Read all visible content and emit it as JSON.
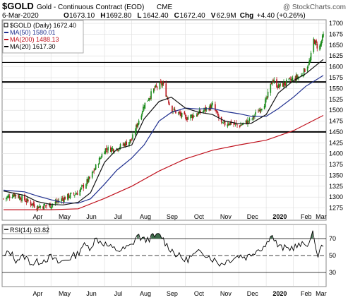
{
  "header": {
    "symbol": "$GOLD",
    "description": "Gold - Continuous Contract (EOD)",
    "exchange": "CME",
    "watermark": "@ StockCharts.com",
    "date": "6-Mar-2020",
    "ohlc": [
      {
        "label": "O",
        "value": "1673.10"
      },
      {
        "label": "H",
        "value": "1692.80"
      },
      {
        "label": "L",
        "value": "1642.40"
      },
      {
        "label": "C",
        "value": "1672.40"
      },
      {
        "label": "V",
        "value": "62.9M"
      }
    ],
    "change_label": "Chg",
    "change_value": "+4.40 (+0.26%)"
  },
  "legend": [
    {
      "text": "$GOLD (Daily) 1672.40",
      "color": "#000000",
      "kind": "candles"
    },
    {
      "text": "MA(50) 1580.01",
      "color": "#1f2f8f",
      "kind": "line"
    },
    {
      "text": "MA(200) 1488.13",
      "color": "#c0121e",
      "kind": "line"
    },
    {
      "text": "MA(20) 1617.30",
      "color": "#000000",
      "kind": "line"
    }
  ],
  "rsi_legend": {
    "text": "RSI(14) 63.82"
  },
  "colors": {
    "up": "#1a8a1a",
    "down": "#b8121b",
    "ma50": "#1f2f8f",
    "ma200": "#c0121e",
    "ma20": "#111111",
    "rsi_fill": "#3d6b4a"
  },
  "chart_data": [
    {
      "type": "candlestick",
      "title": "$GOLD Gold - Continuous Contract (EOD) CME",
      "period": {
        "start": "2019-03-08",
        "end": "2020-03-06"
      },
      "x_tick_labels": [
        "Apr",
        "May",
        "Jun",
        "Jul",
        "Aug",
        "Sep",
        "Oct",
        "Nov",
        "Dec",
        "2020",
        "Feb",
        "Mar"
      ],
      "ylim": [
        1250,
        1705
      ],
      "y_ticks": [
        1275,
        1300,
        1325,
        1350,
        1375,
        1400,
        1425,
        1450,
        1475,
        1500,
        1525,
        1550,
        1575,
        1600,
        1625,
        1650,
        1675,
        1700
      ],
      "horizontal_lines": [
        1450,
        1565,
        1610
      ],
      "grid": true,
      "series": [
        {
          "name": "$GOLD (Daily)",
          "type": "close",
          "x": [
            "2019-03-08",
            "2019-03-20",
            "2019-04-01",
            "2019-04-15",
            "2019-05-01",
            "2019-05-15",
            "2019-06-01",
            "2019-06-15",
            "2019-07-01",
            "2019-07-15",
            "2019-08-01",
            "2019-08-15",
            "2019-08-27",
            "2019-09-05",
            "2019-09-15",
            "2019-10-01",
            "2019-10-15",
            "2019-11-01",
            "2019-11-12",
            "2019-11-20",
            "2019-12-01",
            "2019-12-15",
            "2020-01-01",
            "2020-01-08",
            "2020-01-15",
            "2020-02-01",
            "2020-02-10",
            "2020-02-20",
            "2020-02-24",
            "2020-03-01",
            "2020-03-06"
          ],
          "y": [
            1296,
            1307,
            1294,
            1278,
            1282,
            1297,
            1311,
            1345,
            1410,
            1412,
            1432,
            1512,
            1550,
            1561,
            1503,
            1482,
            1492,
            1511,
            1466,
            1472,
            1464,
            1478,
            1522,
            1570,
            1554,
            1572,
            1580,
            1614,
            1662,
            1640,
            1672
          ]
        },
        {
          "name": "MA(50)",
          "x": [
            "2019-03-08",
            "2019-04-01",
            "2019-04-15",
            "2019-05-01",
            "2019-05-15",
            "2019-06-01",
            "2019-06-15",
            "2019-07-01",
            "2019-07-15",
            "2019-08-01",
            "2019-08-15",
            "2019-09-01",
            "2019-09-15",
            "2019-10-01",
            "2019-10-15",
            "2019-11-01",
            "2019-11-15",
            "2019-12-01",
            "2019-12-15",
            "2020-01-01",
            "2020-01-15",
            "2020-02-01",
            "2020-02-15",
            "2020-03-06"
          ],
          "y": [
            1316,
            1312,
            1303,
            1294,
            1287,
            1286,
            1296,
            1330,
            1362,
            1390,
            1420,
            1475,
            1495,
            1505,
            1503,
            1504,
            1497,
            1492,
            1486,
            1486,
            1504,
            1530,
            1555,
            1580
          ]
        },
        {
          "name": "MA(200)",
          "x": [
            "2019-03-08",
            "2019-05-01",
            "2019-06-01",
            "2019-07-01",
            "2019-08-01",
            "2019-09-01",
            "2019-10-01",
            "2019-11-01",
            "2019-12-01",
            "2020-01-01",
            "2020-02-01",
            "2020-03-06"
          ],
          "y": [
            1271,
            1271,
            1273,
            1297,
            1325,
            1360,
            1388,
            1408,
            1420,
            1431,
            1453,
            1488
          ]
        },
        {
          "name": "MA(20)",
          "x": [
            "2019-03-08",
            "2019-04-01",
            "2019-04-15",
            "2019-05-01",
            "2019-05-15",
            "2019-06-01",
            "2019-06-15",
            "2019-07-01",
            "2019-07-15",
            "2019-08-01",
            "2019-08-15",
            "2019-09-01",
            "2019-09-15",
            "2019-10-01",
            "2019-10-15",
            "2019-11-01",
            "2019-11-15",
            "2019-12-01",
            "2019-12-15",
            "2020-01-01",
            "2020-01-15",
            "2020-02-01",
            "2020-02-15",
            "2020-03-06"
          ],
          "y": [
            1314,
            1304,
            1290,
            1283,
            1282,
            1288,
            1310,
            1380,
            1410,
            1420,
            1480,
            1520,
            1530,
            1505,
            1496,
            1490,
            1475,
            1469,
            1470,
            1490,
            1540,
            1568,
            1584,
            1617
          ]
        }
      ]
    },
    {
      "type": "line",
      "title": "RSI(14) 63.82",
      "x_tick_labels": [
        "Apr",
        "May",
        "Jun",
        "Jul",
        "Aug",
        "Sep",
        "Oct",
        "Nov",
        "Dec",
        "2020",
        "Feb",
        "Mar"
      ],
      "ylim": [
        15,
        85
      ],
      "y_ticks": [
        30,
        50,
        70
      ],
      "reference_lines": [
        30,
        50,
        70
      ],
      "series": [
        {
          "name": "RSI(14)",
          "x": [
            "2019-03-08",
            "2019-03-15",
            "2019-03-22",
            "2019-04-01",
            "2019-04-10",
            "2019-04-20",
            "2019-05-01",
            "2019-05-10",
            "2019-05-20",
            "2019-06-01",
            "2019-06-05",
            "2019-06-15",
            "2019-06-21",
            "2019-07-01",
            "2019-07-10",
            "2019-07-20",
            "2019-08-01",
            "2019-08-07",
            "2019-08-15",
            "2019-08-25",
            "2019-09-03",
            "2019-09-10",
            "2019-09-20",
            "2019-10-01",
            "2019-10-10",
            "2019-10-20",
            "2019-11-01",
            "2019-11-10",
            "2019-11-20",
            "2019-12-01",
            "2019-12-10",
            "2019-12-20",
            "2020-01-01",
            "2020-01-06",
            "2020-01-15",
            "2020-01-25",
            "2020-02-01",
            "2020-02-10",
            "2020-02-20",
            "2020-02-24",
            "2020-02-28",
            "2020-03-06"
          ],
          "y": [
            48,
            55,
            45,
            49,
            40,
            44,
            48,
            41,
            46,
            52,
            62,
            60,
            70,
            64,
            58,
            56,
            62,
            74,
            68,
            72,
            74,
            62,
            52,
            44,
            50,
            55,
            46,
            40,
            45,
            50,
            48,
            56,
            62,
            76,
            60,
            58,
            60,
            62,
            66,
            78,
            48,
            64
          ]
        }
      ]
    }
  ]
}
